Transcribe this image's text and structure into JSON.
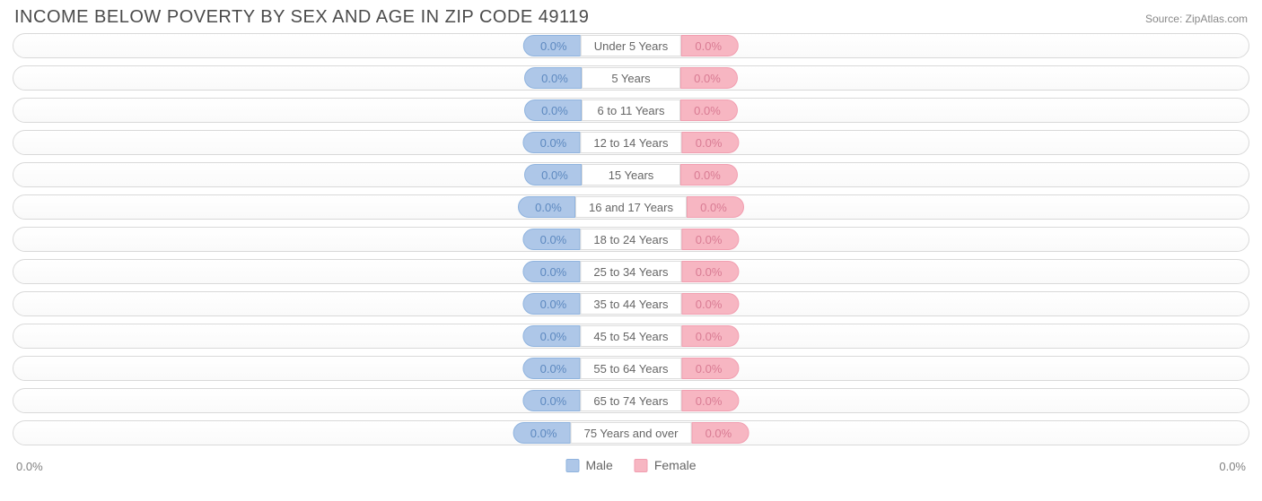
{
  "title": "INCOME BELOW POVERTY BY SEX AND AGE IN ZIP CODE 49119",
  "source": "Source: ZipAtlas.com",
  "axis_min_label": "0.0%",
  "axis_max_label": "0.0%",
  "legend": {
    "male": "Male",
    "female": "Female"
  },
  "colors": {
    "male_fill": "#aec7e8",
    "male_border": "#8fb3de",
    "male_text": "#5d89c0",
    "female_fill": "#f7b6c2",
    "female_border": "#f19eb0",
    "female_text": "#d97b93",
    "title": "#4b4b4b",
    "source": "#888888",
    "track_border": "#d9d9d9",
    "label_text": "#666666"
  },
  "chart": {
    "type": "diverging-bar",
    "rows": [
      {
        "label": "Under 5 Years",
        "male": "0.0%",
        "female": "0.0%"
      },
      {
        "label": "5 Years",
        "male": "0.0%",
        "female": "0.0%"
      },
      {
        "label": "6 to 11 Years",
        "male": "0.0%",
        "female": "0.0%"
      },
      {
        "label": "12 to 14 Years",
        "male": "0.0%",
        "female": "0.0%"
      },
      {
        "label": "15 Years",
        "male": "0.0%",
        "female": "0.0%"
      },
      {
        "label": "16 and 17 Years",
        "male": "0.0%",
        "female": "0.0%"
      },
      {
        "label": "18 to 24 Years",
        "male": "0.0%",
        "female": "0.0%"
      },
      {
        "label": "25 to 34 Years",
        "male": "0.0%",
        "female": "0.0%"
      },
      {
        "label": "35 to 44 Years",
        "male": "0.0%",
        "female": "0.0%"
      },
      {
        "label": "45 to 54 Years",
        "male": "0.0%",
        "female": "0.0%"
      },
      {
        "label": "55 to 64 Years",
        "male": "0.0%",
        "female": "0.0%"
      },
      {
        "label": "65 to 74 Years",
        "male": "0.0%",
        "female": "0.0%"
      },
      {
        "label": "75 Years and over",
        "male": "0.0%",
        "female": "0.0%"
      }
    ]
  }
}
